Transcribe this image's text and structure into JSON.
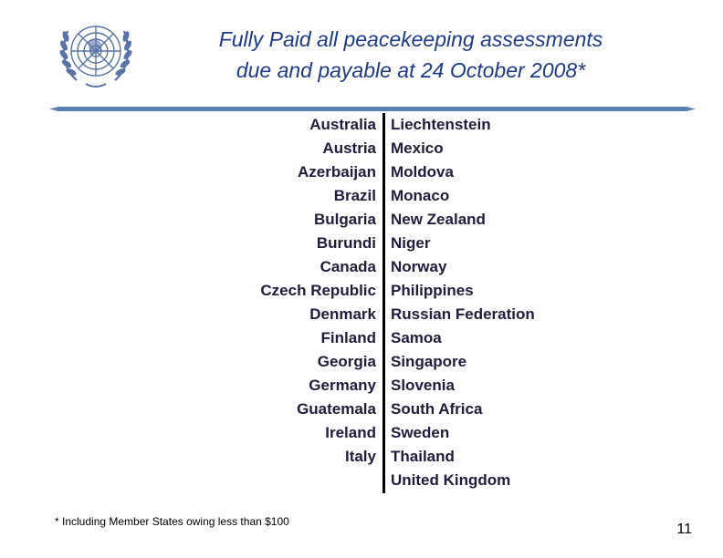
{
  "header": {
    "title_line1": "Fully Paid all peacekeeping assessments",
    "title_line2": "due and payable at 24 October 2008*"
  },
  "colors": {
    "title": "#1f3a8a",
    "list_text": "#1e1e3c",
    "rule": "#5b7fb0",
    "logo": "#5a74a6"
  },
  "countries_left": [
    "Australia",
    "Austria",
    "Azerbaijan",
    "Brazil",
    "Bulgaria",
    "Burundi",
    "Canada",
    "Czech Republic",
    "Denmark",
    "Finland",
    "Georgia",
    "Germany",
    "Guatemala",
    "Ireland",
    "Italy"
  ],
  "countries_right": [
    "Liechtenstein",
    "Mexico",
    "Moldova",
    "Monaco",
    "New Zealand",
    "Niger",
    "Norway",
    "Philippines",
    "Russian Federation",
    "Samoa",
    "Singapore",
    "Slovenia",
    "South Africa",
    "Sweden",
    "Thailand",
    "United Kingdom"
  ],
  "footer": {
    "footnote": "* Including Member States owing less than $100",
    "page_number": "11"
  },
  "logo": {
    "icon": "un-emblem-icon"
  }
}
